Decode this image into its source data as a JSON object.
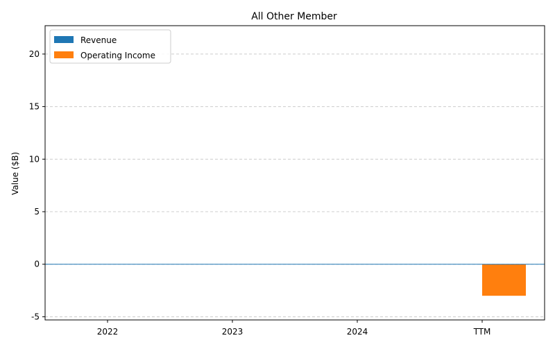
{
  "chart_data": {
    "type": "bar",
    "title": "All Other Member",
    "xlabel": "",
    "ylabel": "Value ($B)",
    "categories": [
      "2022",
      "2023",
      "2024",
      "TTM"
    ],
    "series": [
      {
        "name": "Revenue",
        "color": "#1f77b4",
        "values": [
          0,
          0,
          0,
          0
        ]
      },
      {
        "name": "Operating Income",
        "color": "#ff7f0e",
        "values": [
          0,
          0,
          0,
          -3.0
        ]
      }
    ],
    "ylim": [
      -5.3,
      22.7
    ],
    "yticks": [
      -5,
      0,
      5,
      10,
      15,
      20
    ],
    "grid": true,
    "legend_position": "top-left"
  }
}
